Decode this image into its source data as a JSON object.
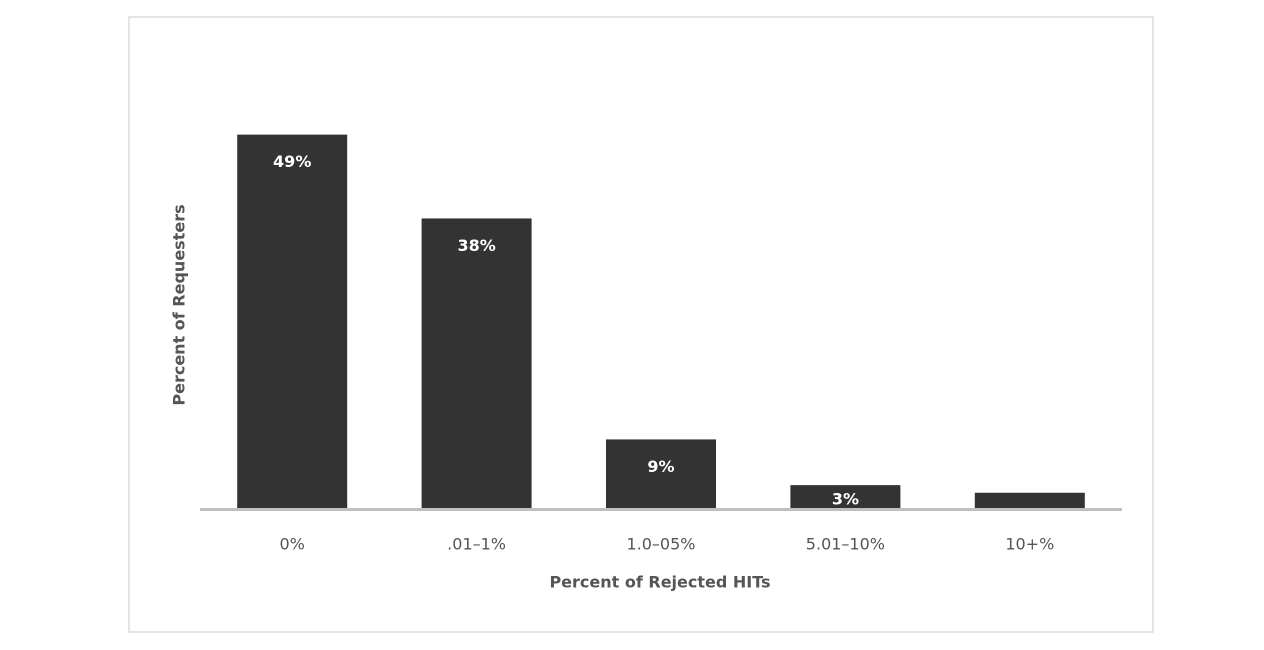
{
  "chart_data": {
    "type": "bar",
    "x_label": "Percent of Rejected HITs",
    "y_label": "Percent of Requesters",
    "categories": [
      "0%",
      ".01–1%",
      "1.0–05%",
      "5.01–10%",
      "10+%"
    ],
    "values": [
      49,
      38,
      9,
      3,
      2
    ],
    "value_labels": [
      "49%",
      "38%",
      "9%",
      "3%",
      null
    ],
    "color": "#333333",
    "ylim": [
      0,
      50
    ]
  }
}
